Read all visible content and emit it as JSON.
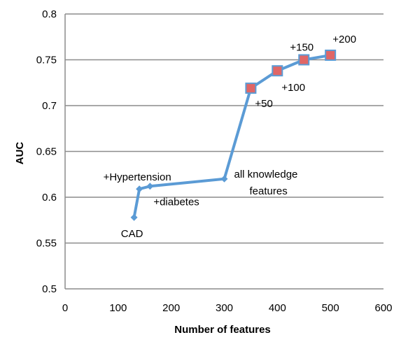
{
  "chart_data": {
    "type": "line",
    "title": "",
    "xlabel": "Number of features",
    "ylabel": "AUC",
    "xlim": [
      0,
      600
    ],
    "ylim": [
      0.5,
      0.8
    ],
    "xticks": [
      "0",
      "100",
      "200",
      "300",
      "400",
      "500",
      "600"
    ],
    "yticks": [
      "0.5",
      "0.55",
      "0.6",
      "0.65",
      "0.7",
      "0.75",
      "0.8"
    ],
    "grid": "horizontal",
    "legend": "none",
    "series_color": "#5b9bd5",
    "highlight_color": "#e06666",
    "points": [
      {
        "x": 130,
        "y": 0.578,
        "label": "CAD",
        "highlight": false
      },
      {
        "x": 140,
        "y": 0.609,
        "label": "+Hypertension",
        "highlight": false
      },
      {
        "x": 160,
        "y": 0.612,
        "label": "+diabetes",
        "highlight": false
      },
      {
        "x": 300,
        "y": 0.62,
        "label": "all knowledge features",
        "highlight": false
      },
      {
        "x": 350,
        "y": 0.719,
        "label": "+50",
        "highlight": true
      },
      {
        "x": 400,
        "y": 0.738,
        "label": "+100",
        "highlight": true
      },
      {
        "x": 450,
        "y": 0.75,
        "label": "+150",
        "highlight": true
      },
      {
        "x": 500,
        "y": 0.755,
        "label": "+200",
        "highlight": true
      }
    ]
  }
}
